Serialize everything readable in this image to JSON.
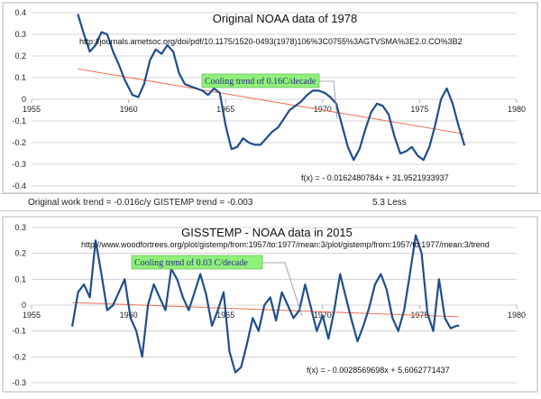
{
  "top_chart": {
    "title": "Original NOAA data of 1978",
    "url": "http://journals.ametsoc.org/doi/pdf/10.1175/1520-0493(1978)106%3C0755%3AGTVSMA%3E2.0.CO%3B2",
    "callout": "Cooling trend of 0.16C/decade",
    "equation": "f(x) =  - 0.0162480784x + 31.9521933937"
  },
  "info_row": {
    "left": "Original work trend = -0.016c/y   GISTEMP trend = -0.003",
    "right": "5.3 Less"
  },
  "bottom_chart": {
    "title": "GISSTEMP - NOAA data in 2015",
    "url": "http://www.woodfortrees.org/plot/gistemp/from:1957/to:1977/mean:3/plot/gistemp/from:1957/to:1977/mean:3/trend",
    "callout": "Cooling trend of 0.03 C/decade",
    "equation": "f(x) =  - 0.0028569698x + 5.6062771437"
  },
  "colors": {
    "series": "#1f4e8c",
    "trend": "#f07050",
    "callout_bg": "#8ff07a",
    "callout_text": "#2b2b8c",
    "grid": "#c8c8c8"
  },
  "chart_data": [
    {
      "type": "line",
      "title": "Original NOAA data of 1978",
      "xlim": [
        1955,
        1980
      ],
      "ylim": [
        -0.4,
        0.4
      ],
      "x_ticks": [
        "1955",
        "1960",
        "1965",
        "1970",
        "1975",
        "1980"
      ],
      "y_ticks": [
        "0.4",
        "0.3",
        "0.2",
        "0.1",
        "0",
        "-0.1",
        "-0.2",
        "-0.3",
        "-0.4"
      ],
      "series": [
        {
          "x": [
            1957.4,
            1957.7,
            1958.0,
            1958.3,
            1958.6,
            1958.9,
            1959.2,
            1959.5,
            1959.8,
            1960.2,
            1960.5,
            1960.8,
            1961.1,
            1961.4,
            1961.7,
            1962.0,
            1962.3,
            1962.6,
            1962.9,
            1963.2,
            1963.5,
            1963.8,
            1964.1,
            1964.4,
            1964.7,
            1965.0,
            1965.3,
            1965.6,
            1965.9,
            1966.2,
            1966.5,
            1966.8,
            1967.1,
            1967.4,
            1967.7,
            1968.0,
            1968.3,
            1968.6,
            1968.9,
            1969.2,
            1969.5,
            1969.8,
            1970.1,
            1970.4,
            1970.7,
            1971.0,
            1971.3,
            1971.6,
            1971.9,
            1972.2,
            1972.5,
            1972.8,
            1973.1,
            1973.4,
            1973.7,
            1974.0,
            1974.3,
            1974.6,
            1974.9,
            1975.2,
            1975.5,
            1975.8,
            1976.1,
            1976.4,
            1976.7,
            1977.0,
            1977.3
          ],
          "y": [
            0.39,
            0.3,
            0.22,
            0.25,
            0.31,
            0.3,
            0.22,
            0.16,
            0.09,
            0.02,
            0.01,
            0.07,
            0.18,
            0.23,
            0.21,
            0.25,
            0.22,
            0.12,
            0.07,
            0.06,
            0.05,
            0.04,
            0.02,
            0.05,
            0.03,
            -0.12,
            -0.23,
            -0.22,
            -0.18,
            -0.2,
            -0.21,
            -0.21,
            -0.18,
            -0.15,
            -0.13,
            -0.09,
            -0.05,
            -0.03,
            -0.01,
            0.02,
            0.04,
            0.04,
            0.03,
            0.01,
            -0.02,
            -0.12,
            -0.22,
            -0.28,
            -0.23,
            -0.14,
            -0.06,
            -0.02,
            -0.03,
            -0.07,
            -0.17,
            -0.25,
            -0.24,
            -0.22,
            -0.26,
            -0.28,
            -0.22,
            -0.12,
            0.0,
            0.05,
            -0.02,
            -0.12,
            -0.21
          ]
        }
      ],
      "trend": {
        "x": [
          1957.4,
          1977.3
        ],
        "y": [
          0.14,
          -0.16
        ]
      }
    },
    {
      "type": "line",
      "title": "GISSTEMP - NOAA data in 2015",
      "xlim": [
        1955,
        1980
      ],
      "ylim": [
        -0.3,
        0.3
      ],
      "x_ticks": [
        "1955",
        "1960",
        "1965",
        "1970",
        "1975",
        "1980"
      ],
      "y_ticks": [
        "0.3",
        "0.2",
        "0.1",
        "0",
        "-0.1",
        "-0.2",
        "-0.3"
      ],
      "series": [
        {
          "x": [
            1957.1,
            1957.4,
            1957.7,
            1958.0,
            1958.3,
            1958.6,
            1958.9,
            1959.2,
            1959.5,
            1959.8,
            1960.1,
            1960.4,
            1960.7,
            1961.0,
            1961.3,
            1961.6,
            1961.9,
            1962.2,
            1962.5,
            1962.8,
            1963.1,
            1963.4,
            1963.7,
            1964.0,
            1964.3,
            1964.6,
            1964.9,
            1965.2,
            1965.5,
            1965.8,
            1966.1,
            1966.4,
            1966.7,
            1967.0,
            1967.3,
            1967.6,
            1967.9,
            1968.2,
            1968.5,
            1968.8,
            1969.1,
            1969.4,
            1969.7,
            1970.0,
            1970.3,
            1970.6,
            1970.9,
            1971.2,
            1971.5,
            1971.8,
            1972.1,
            1972.4,
            1972.7,
            1973.0,
            1973.3,
            1973.6,
            1973.9,
            1974.2,
            1974.5,
            1974.8,
            1975.1,
            1975.4,
            1975.7,
            1976.0,
            1976.3,
            1976.6,
            1976.9,
            1977.0
          ],
          "y": [
            -0.08,
            0.05,
            0.08,
            0.03,
            0.25,
            0.12,
            -0.02,
            0.0,
            0.05,
            0.1,
            -0.05,
            -0.1,
            -0.2,
            0.0,
            0.08,
            0.03,
            -0.02,
            0.14,
            0.1,
            0.03,
            -0.02,
            0.05,
            0.12,
            0.04,
            -0.08,
            -0.02,
            0.05,
            -0.18,
            -0.26,
            -0.24,
            -0.15,
            -0.05,
            -0.1,
            0.0,
            0.03,
            -0.06,
            0.05,
            0.0,
            -0.05,
            -0.02,
            0.08,
            -0.01,
            -0.1,
            -0.04,
            -0.13,
            -0.02,
            0.12,
            0.03,
            -0.06,
            -0.14,
            -0.08,
            -0.01,
            0.08,
            0.12,
            0.06,
            -0.05,
            -0.1,
            -0.02,
            0.12,
            0.27,
            0.2,
            -0.03,
            -0.1,
            0.1,
            -0.05,
            -0.09,
            -0.08,
            -0.08
          ]
        }
      ],
      "trend": {
        "x": [
          1957.1,
          1977.0
        ],
        "y": [
          0.01,
          -0.045
        ]
      }
    }
  ]
}
